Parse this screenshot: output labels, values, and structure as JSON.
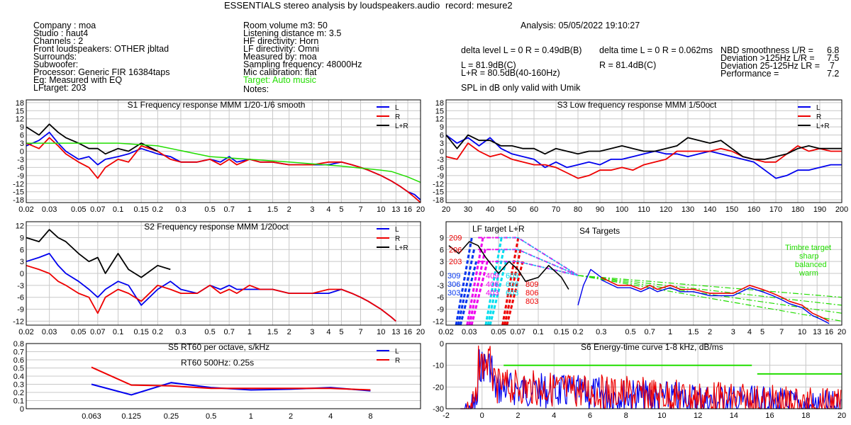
{
  "header": {
    "title": "ESSENTIALS stereo analysis by loudspeakers.audio",
    "record": "record: mesure2",
    "analysis": "Analysis: 05/05/2022 19:10:27"
  },
  "info_left": [
    "Company : moa",
    "Studio : haut4",
    "Channels : 2",
    "Front loudspeakers: OTHER jbltad",
    "Surrounds:",
    "Subwoofer:",
    "Processor: Generic FIR 16384taps",
    "Eq: Measured with EQ",
    "LFtarget: 203"
  ],
  "info_mid": [
    "Room volume m3: 50",
    "Listening distance m: 3.5",
    "HF directivity: Horn",
    "LF directivity: Omni",
    "Measured by: moa",
    "Sampling frequency: 48000Hz",
    "Mic calibration: flat"
  ],
  "info_mid_target": "Target: Auto music",
  "info_mid_notes": "Notes:",
  "metrics": {
    "delta_level": "delta level L = 0  R = 0.49dB(B)",
    "delta_time": "delta time  L = 0  R = 0.062ms",
    "level_L": "L =     81.9dB(C)",
    "level_R": "R =     81.4dB(C)",
    "level_LR": "L+R = 80.5dB(40-160Hz)",
    "spl_note": "SPL in dB only valid with Umik",
    "scores": [
      {
        "label": "NBD smoothness L/R =",
        "value": "6.8"
      },
      {
        "label": "Deviation >125Hz L/R =",
        "value": "7.5"
      },
      {
        "label": "Deviation 25-125Hz LR =",
        "value": "7"
      },
      {
        "label": "Performance =",
        "value": "7.2"
      }
    ]
  },
  "colors": {
    "L": "#0000ee",
    "R": "#ee0000",
    "LR": "#000000",
    "target": "#22dd00",
    "grid": "#c8c8c8"
  },
  "chart_data": [
    {
      "id": "S1",
      "type": "line",
      "scale": "log",
      "title": "S1  Frequency response MMM 1/20-1/6 smooth",
      "xlim": [
        0.02,
        20
      ],
      "ylim": [
        -19,
        19
      ],
      "xticks": [
        "0.02",
        "0.03",
        "0.05",
        "0.07",
        "0.1",
        "0.15",
        "0.2",
        "0.3",
        "0.5",
        "0.7",
        "1",
        "1.5",
        "2",
        "3",
        "4",
        "5",
        "7",
        "10",
        "13",
        "16",
        "20"
      ],
      "yticks": [
        "18",
        "15",
        "12",
        "9",
        "6",
        "3",
        "0",
        "-3",
        "-6",
        "-9",
        "-12",
        "-15",
        "-18"
      ],
      "legend": [
        "L",
        "R",
        "L+R"
      ],
      "series": [
        {
          "name": "L",
          "x": [
            0.02,
            0.025,
            0.03,
            0.035,
            0.04,
            0.05,
            0.06,
            0.07,
            0.08,
            0.1,
            0.12,
            0.15,
            0.2,
            0.25,
            0.3,
            0.4,
            0.5,
            0.6,
            0.7,
            0.8,
            1,
            1.2,
            1.5,
            2,
            2.5,
            3,
            4,
            5,
            6,
            7,
            8,
            10,
            12,
            14,
            16,
            18,
            20
          ],
          "y": [
            2,
            4,
            7,
            3,
            0,
            -3,
            -2,
            -5,
            -3,
            -2,
            -1,
            1,
            -1,
            -2,
            -4,
            -4,
            -3,
            -4,
            -2,
            -4,
            -3,
            -4,
            -4,
            -5,
            -5,
            -5,
            -5,
            -4,
            -5,
            -6,
            -7,
            -9,
            -11,
            -13,
            -15,
            -16,
            -18
          ]
        },
        {
          "name": "R",
          "x": [
            0.02,
            0.025,
            0.03,
            0.035,
            0.04,
            0.05,
            0.06,
            0.07,
            0.08,
            0.1,
            0.12,
            0.15,
            0.2,
            0.25,
            0.3,
            0.4,
            0.5,
            0.6,
            0.7,
            0.8,
            1,
            1.2,
            1.5,
            2,
            2.5,
            3,
            4,
            5,
            6,
            7,
            8,
            10,
            12,
            14,
            16,
            18,
            20
          ],
          "y": [
            3,
            1,
            5,
            2,
            -1,
            -4,
            -6,
            -10,
            -6,
            -3,
            -4,
            2,
            0,
            -3,
            -4,
            -4,
            -3,
            -5,
            -3,
            -5,
            -3,
            -4,
            -4,
            -5,
            -5,
            -5,
            -4,
            -4,
            -5,
            -6,
            -7,
            -9,
            -11,
            -13,
            -15,
            -17,
            -19
          ]
        },
        {
          "name": "L+R",
          "x": [
            0.02,
            0.025,
            0.03,
            0.035,
            0.04,
            0.05,
            0.06,
            0.07,
            0.08,
            0.1,
            0.12,
            0.15,
            0.2
          ],
          "y": [
            9,
            6,
            10,
            7,
            5,
            3,
            1,
            1,
            -1,
            1,
            0,
            3,
            0
          ]
        },
        {
          "name": "target",
          "x": [
            0.02,
            0.05,
            0.1,
            0.2,
            0.5,
            1,
            2,
            5,
            10,
            12,
            16,
            20
          ],
          "y": [
            3,
            3,
            3,
            2,
            -2,
            -3,
            -4,
            -5.5,
            -7,
            -7.5,
            -9.5,
            -11.5
          ]
        }
      ]
    },
    {
      "id": "S3",
      "type": "line",
      "title": "S3  Low frequency response MMM 1/50oct",
      "xlim": [
        20,
        200
      ],
      "ylim": [
        -19,
        19
      ],
      "xticks": [
        "20",
        "30",
        "40",
        "50",
        "60",
        "70",
        "80",
        "90",
        "100",
        "110",
        "120",
        "130",
        "140",
        "150",
        "160",
        "170",
        "180",
        "190",
        "200"
      ],
      "yticks": [
        "18",
        "15",
        "12",
        "9",
        "6",
        "3",
        "0",
        "-3",
        "-6",
        "-9",
        "-12",
        "-15",
        "-18"
      ],
      "legend": [
        "L",
        "R",
        "L+R"
      ],
      "series": [
        {
          "name": "L",
          "x": [
            20,
            25,
            30,
            35,
            40,
            45,
            50,
            55,
            60,
            65,
            70,
            75,
            80,
            85,
            90,
            95,
            100,
            105,
            110,
            115,
            120,
            125,
            130,
            135,
            140,
            145,
            150,
            155,
            160,
            165,
            170,
            175,
            180,
            185,
            190,
            195,
            200
          ],
          "y": [
            6,
            3,
            5,
            2,
            5,
            1,
            -1,
            -2,
            -3,
            -6,
            -4,
            -6,
            -5,
            -4,
            -5,
            -3,
            -3,
            -2,
            -1,
            0,
            -1,
            -1,
            -2,
            -1,
            0,
            -1,
            -2,
            -3,
            -4,
            -7,
            -10,
            -9,
            -7,
            -7,
            -6,
            -5,
            -5
          ]
        },
        {
          "name": "R",
          "x": [
            20,
            25,
            30,
            35,
            40,
            45,
            50,
            55,
            60,
            65,
            70,
            75,
            80,
            85,
            90,
            95,
            100,
            105,
            110,
            115,
            120,
            125,
            130,
            135,
            140,
            145,
            150,
            155,
            160,
            165,
            170,
            175,
            180,
            185,
            190,
            195,
            200
          ],
          "y": [
            -2,
            -3,
            3,
            0,
            -2,
            -1,
            -3,
            -4,
            -5,
            -5,
            -6,
            -8,
            -10,
            -9,
            -7,
            -7,
            -6,
            -7,
            -5,
            -4,
            -3,
            0,
            0,
            0,
            0,
            1,
            0,
            -2,
            -3,
            -4,
            -4,
            -1,
            2,
            0,
            1,
            0,
            0
          ]
        },
        {
          "name": "L+R",
          "x": [
            20,
            25,
            30,
            35,
            40,
            45,
            50,
            55,
            60,
            65,
            70,
            75,
            80,
            85,
            90,
            95,
            100,
            105,
            110,
            115,
            120,
            125,
            130,
            135,
            140,
            145,
            150,
            155,
            160,
            165,
            170,
            175,
            180,
            185,
            190,
            195,
            200
          ],
          "y": [
            6,
            1,
            6,
            4,
            4,
            2,
            2,
            1,
            1,
            -1,
            1,
            0,
            -1,
            0,
            0,
            1,
            2,
            1,
            0,
            0,
            1,
            2,
            5,
            4,
            3,
            4,
            1,
            -2,
            -3,
            -3,
            -2,
            -1,
            1,
            2,
            1,
            1,
            1
          ]
        }
      ]
    },
    {
      "id": "S2",
      "type": "line",
      "scale": "log",
      "title": "S2  Frequency response MMM 1/20oct",
      "xlim": [
        0.02,
        20
      ],
      "ylim": [
        -13,
        13
      ],
      "xticks": [
        "0.02",
        "0.03",
        "0.05",
        "0.07",
        "0.1",
        "0.15",
        "0.2",
        "0.3",
        "0.5",
        "0.7",
        "1",
        "1.5",
        "2",
        "3",
        "4",
        "5",
        "7",
        "10",
        "13",
        "16",
        "20"
      ],
      "yticks": [
        "12",
        "9",
        "6",
        "3",
        "0",
        "-3",
        "-6",
        "-9",
        "-12"
      ],
      "legend": [
        "L",
        "R",
        "L+R"
      ],
      "series": [
        {
          "name": "L",
          "x": [
            0.02,
            0.025,
            0.03,
            0.035,
            0.04,
            0.05,
            0.06,
            0.07,
            0.08,
            0.1,
            0.12,
            0.15,
            0.2,
            0.25,
            0.3,
            0.4,
            0.5,
            0.6,
            0.7,
            0.8,
            1,
            1.2,
            1.5,
            2,
            2.5,
            3,
            4,
            5,
            6,
            7,
            8,
            10,
            12,
            13
          ],
          "y": [
            3,
            4,
            5,
            2,
            0,
            -2,
            -4,
            -6,
            -4,
            -2,
            -3,
            -8,
            -4,
            -2,
            -4,
            -5,
            -3,
            -4,
            -3,
            -4,
            -4,
            -4,
            -4,
            -5,
            -5,
            -5,
            -5,
            -4,
            -5,
            -6,
            -7,
            -9,
            -11,
            -12
          ]
        },
        {
          "name": "R",
          "x": [
            0.02,
            0.025,
            0.03,
            0.035,
            0.04,
            0.05,
            0.06,
            0.07,
            0.08,
            0.1,
            0.12,
            0.15,
            0.2,
            0.25,
            0.3,
            0.4,
            0.5,
            0.6,
            0.7,
            0.8,
            1,
            1.2,
            1.5,
            2,
            2.5,
            3,
            4,
            5,
            6,
            7,
            8,
            10,
            12,
            13
          ],
          "y": [
            2,
            1,
            0,
            -2,
            -3,
            -5,
            -6,
            -10,
            -6,
            -4,
            -5,
            -7,
            -3,
            -4,
            -5,
            -5,
            -3,
            -5,
            -4,
            -5,
            -3,
            -4,
            -4,
            -5,
            -5,
            -5,
            -4,
            -4,
            -5,
            -6,
            -7,
            -9,
            -11,
            -12
          ]
        },
        {
          "name": "L+R",
          "x": [
            0.02,
            0.025,
            0.03,
            0.035,
            0.04,
            0.05,
            0.06,
            0.07,
            0.08,
            0.1,
            0.12,
            0.15,
            0.2,
            0.25
          ],
          "y": [
            9,
            8,
            11,
            9,
            8,
            5,
            3,
            4,
            0,
            5,
            1,
            -1,
            2,
            1
          ]
        }
      ]
    },
    {
      "id": "S4",
      "type": "line",
      "scale": "log",
      "title": "S4 Targets",
      "subtitle": "LF target L+R",
      "xlim": [
        0.02,
        20
      ],
      "ylim": [
        -13,
        13
      ],
      "xticks": [
        "0.02",
        "0.03",
        "0.05",
        "0.07",
        "0.1",
        "0.15",
        "0.2",
        "0.3",
        "0.5",
        "0.7",
        "1",
        "1.5",
        "2",
        "3",
        "4",
        "5",
        "7",
        "10",
        "13",
        "16",
        "20"
      ],
      "yticks": [
        "9",
        "6",
        "3",
        "0",
        "-3",
        "-6",
        "-9",
        "-12"
      ],
      "annotations": {
        "red_left": [
          "209",
          "206",
          "203"
        ],
        "blue": [
          "309",
          "306",
          "303"
        ],
        "magenta": [
          "409",
          "406",
          "403"
        ],
        "cyan": [
          "609",
          "606",
          "603"
        ],
        "red_right": [
          "809",
          "806",
          "803"
        ],
        "timbre_title": "Timbre target",
        "timbre": [
          "sharp",
          "balanced",
          "warm"
        ]
      },
      "targets": {
        "plateaus": [
          9,
          6,
          3
        ]
      },
      "series": [
        {
          "name": "measured",
          "x": [
            0.025,
            0.03,
            0.035,
            0.04,
            0.05,
            0.06,
            0.07,
            0.08,
            0.1,
            0.12,
            0.15,
            0.2,
            0.25,
            0.3,
            0.4,
            0.5,
            0.6,
            0.7,
            0.8,
            1,
            1.2,
            1.5,
            2,
            2.5,
            3,
            4,
            5,
            6,
            7,
            8,
            10,
            12,
            14,
            16
          ],
          "y": [
            5,
            8,
            7,
            6,
            1,
            2,
            0,
            3,
            1,
            -2,
            -3,
            -1,
            1,
            -1,
            -3,
            -3,
            -4,
            -3,
            -4,
            -3,
            -4,
            -4,
            -5,
            -5,
            -5,
            -3,
            -4,
            -5,
            -6,
            -7,
            -8,
            -10,
            -11,
            -12
          ]
        }
      ]
    },
    {
      "id": "S5",
      "type": "line",
      "title": "S5  RT60 per octave, s/kHz",
      "annotation": "RT60 500Hz: 0.25s",
      "categories": [
        "0.063",
        "0.125",
        "0.25",
        "0.5",
        "1",
        "2",
        "4",
        "8"
      ],
      "ylim": [
        0,
        0.8
      ],
      "yticks": [
        "0.8",
        "0.7",
        "0.6",
        "0.5",
        "0.4",
        "0.3",
        "0.2",
        "0.1",
        "0"
      ],
      "legend": [
        "L",
        "R"
      ],
      "series": [
        {
          "name": "L",
          "values": [
            0.3,
            0.17,
            0.32,
            0.26,
            0.23,
            0.24,
            0.26,
            0.22
          ]
        },
        {
          "name": "R",
          "values": [
            0.51,
            0.29,
            0.28,
            0.25,
            0.25,
            0.25,
            0.25,
            0.23
          ]
        }
      ]
    },
    {
      "id": "S6",
      "type": "line",
      "title": "S6  Energy-time curve 1-8 kHz, dB/ms",
      "xlim": [
        -2,
        20
      ],
      "ylim": [
        -30,
        0
      ],
      "xticks": [
        "-2",
        "0",
        "2",
        "4",
        "6",
        "8",
        "10",
        "12",
        "14",
        "16",
        "18",
        "20"
      ],
      "yticks": [
        "0",
        "-10",
        "-20",
        "-30"
      ],
      "series": [
        {
          "name": "target",
          "segments": [
            [
              [
                1.2,
                -10
              ],
              [
                15,
                -10
              ]
            ],
            [
              [
                15.3,
                -14
              ],
              [
                20,
                -14
              ]
            ]
          ]
        }
      ]
    }
  ]
}
